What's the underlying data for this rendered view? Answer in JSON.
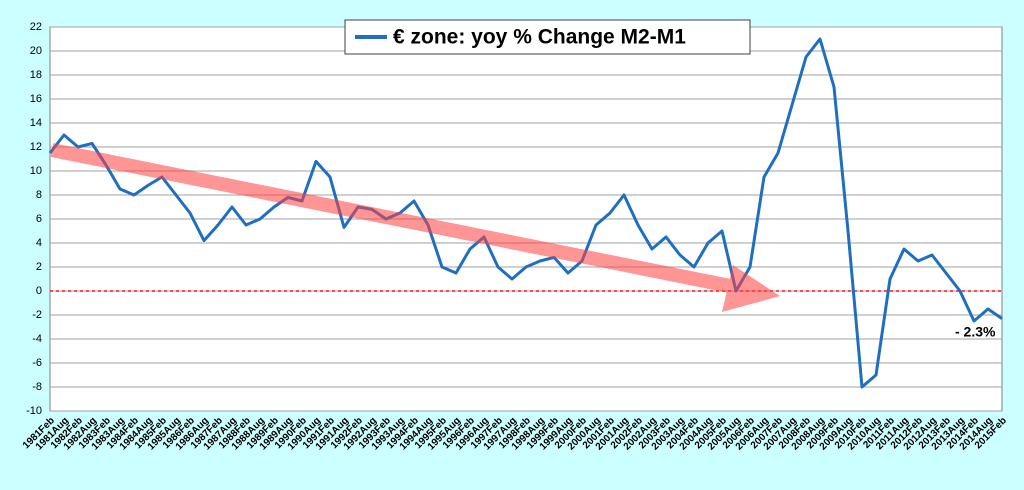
{
  "chart_data": {
    "type": "line",
    "categories": [
      "1981Feb",
      "1981Aug",
      "1982Feb",
      "1982Aug",
      "1983Feb",
      "1983Aug",
      "1984Feb",
      "1984Aug",
      "1985Feb",
      "1985Aug",
      "1986Feb",
      "1986Aug",
      "1987Feb",
      "1987Aug",
      "1988Feb",
      "1988Aug",
      "1989Feb",
      "1989Aug",
      "1990Feb",
      "1990Aug",
      "1991Feb",
      "1991Aug",
      "1992Feb",
      "1992Aug",
      "1993Feb",
      "1993Aug",
      "1994Feb",
      "1994Aug",
      "1995Feb",
      "1995Aug",
      "1996Feb",
      "1996Aug",
      "1997Feb",
      "1997Aug",
      "1998Feb",
      "1998Aug",
      "1999Feb",
      "1999Aug",
      "2000Feb",
      "2000Aug",
      "2001Feb",
      "2001Aug",
      "2002Feb",
      "2002Aug",
      "2003Feb",
      "2003Aug",
      "2004Feb",
      "2004Aug",
      "2005Feb",
      "2005Aug",
      "2006Feb",
      "2006Aug",
      "2007Feb",
      "2007Aug",
      "2008Feb",
      "2008Aug",
      "2009Feb",
      "2009Aug",
      "2010Feb",
      "2010Aug",
      "2011Feb",
      "2011Aug",
      "2012Feb",
      "2012Aug",
      "2013Feb",
      "2013Aug",
      "2014Feb",
      "2014Aug",
      "2015Feb"
    ],
    "series": [
      {
        "name": "€ zone: yoy % Change M2-M1",
        "color": "#1f6fc0",
        "values": [
          11.5,
          13.0,
          12.0,
          12.3,
          10.5,
          8.5,
          8.0,
          8.8,
          9.5,
          8.0,
          6.5,
          4.2,
          5.5,
          7.0,
          5.5,
          6.0,
          7.0,
          7.8,
          7.5,
          10.8,
          9.5,
          5.3,
          7.0,
          6.8,
          6.0,
          6.5,
          7.5,
          5.5,
          2.0,
          1.5,
          3.5,
          4.5,
          2.0,
          1.0,
          2.0,
          2.5,
          2.8,
          1.5,
          2.5,
          5.5,
          6.5,
          8.0,
          5.5,
          3.5,
          4.5,
          3.0,
          2.0,
          4.0,
          5.0,
          0.0,
          2.0,
          9.5,
          11.5,
          15.5,
          19.5,
          21.0,
          17.0,
          5.0,
          -8.0,
          -7.0,
          1.0,
          3.5,
          2.5,
          3.0,
          1.5,
          0.0,
          -2.5,
          -1.5,
          -2.3
        ]
      }
    ],
    "ylim": [
      -10,
      22
    ],
    "yticks": [
      -10,
      -8,
      -6,
      -4,
      -2,
      0,
      2,
      4,
      6,
      8,
      10,
      12,
      14,
      16,
      18,
      20,
      22
    ],
    "grid": true,
    "annotation": "- 2.3%"
  }
}
